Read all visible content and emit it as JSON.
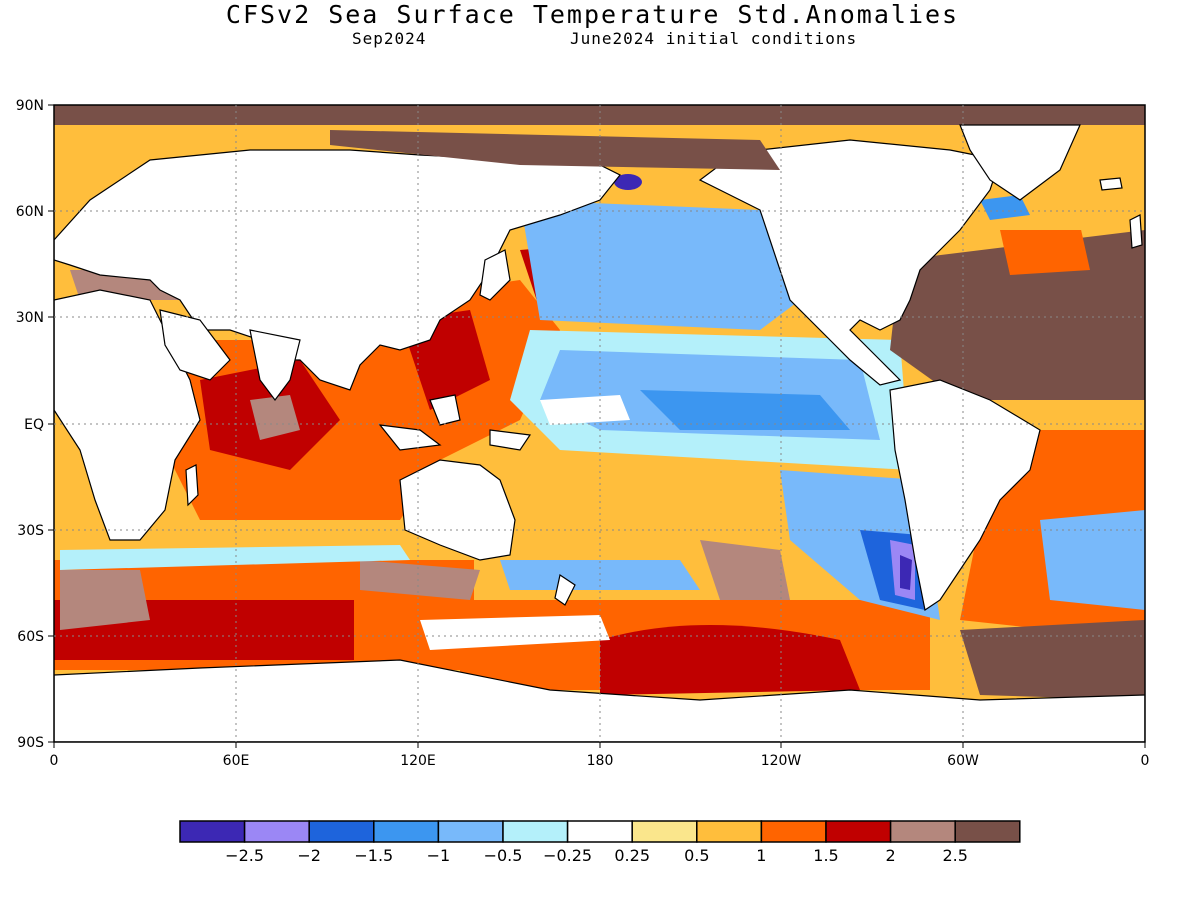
{
  "title": "CFSv2 Sea Surface Temperature Std.Anomalies",
  "subtitle_left": "Sep2024",
  "subtitle_right": "June2024 initial conditions",
  "colors": {
    "ocean_neutral": "#ffffff",
    "land": "#ffffff",
    "ice_top": "#785048"
  },
  "map": {
    "lat_labels": [
      "90N",
      "60N",
      "30N",
      "EQ",
      "30S",
      "60S",
      "90S"
    ],
    "lon_labels": [
      "0",
      "60E",
      "120E",
      "180",
      "120W",
      "60W",
      "0"
    ]
  },
  "colorbar": {
    "colors": [
      "#3c28b4",
      "#9b87f5",
      "#1e64dc",
      "#3c96f0",
      "#78b9fa",
      "#b4f0fa",
      "#ffffff",
      "#fae68c",
      "#ffbe3c",
      "#ff6400",
      "#c00000",
      "#b4877d",
      "#785048"
    ],
    "labels": [
      "-2.5",
      "-2",
      "-1.5",
      "-1",
      "-0.5",
      "-0.25",
      "0.25",
      "0.5",
      "1",
      "1.5",
      "2",
      "2.5"
    ]
  }
}
